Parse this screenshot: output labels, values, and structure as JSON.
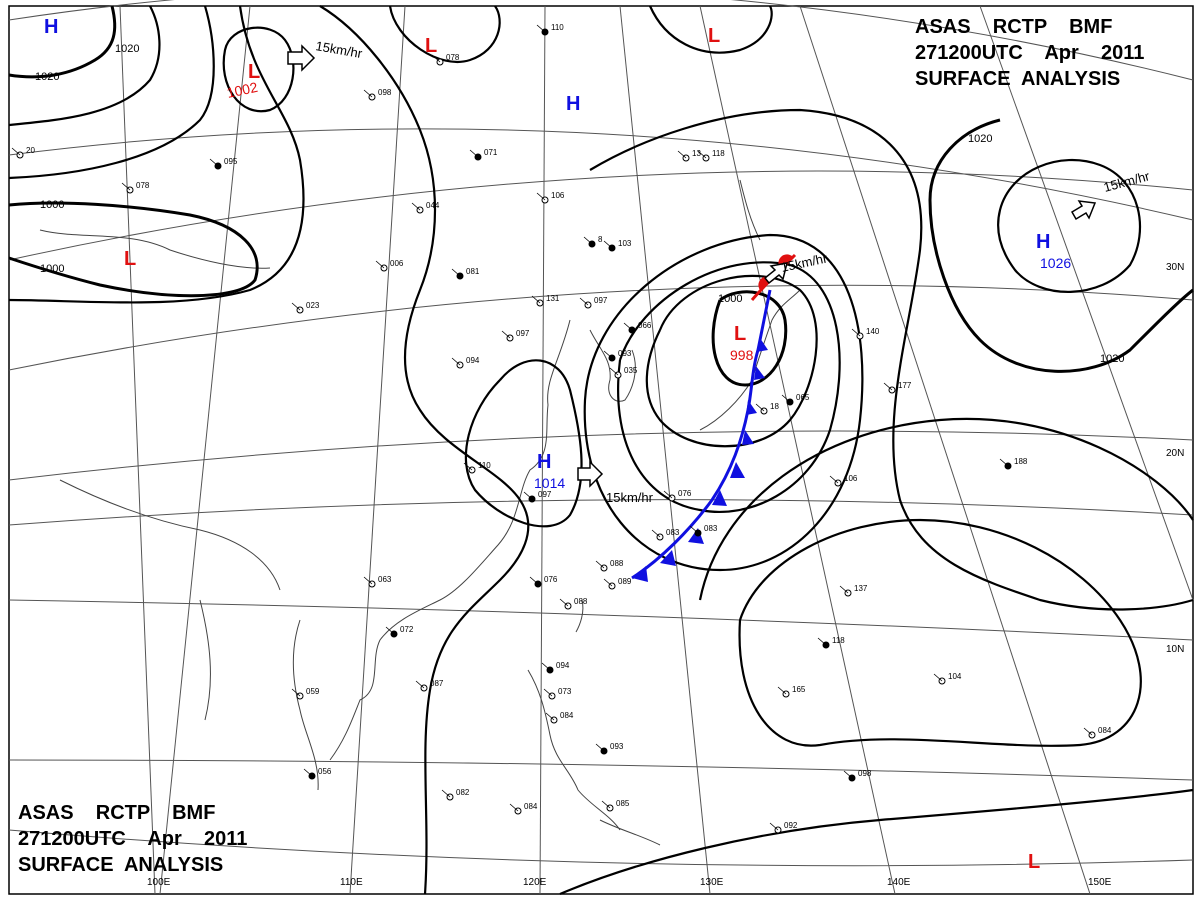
{
  "header": {
    "line1": "ASAS    RCTP    BMF",
    "line2": "271200UTC    Apr    2011",
    "line3": "SURFACE  ANALYSIS"
  },
  "colors": {
    "high": "#1010e0",
    "low": "#e01010",
    "isobar": "#000000",
    "grid": "#555555",
    "coast": "#444444"
  },
  "grid_labels": {
    "longitudes": [
      "100E",
      "110E",
      "120E",
      "130E",
      "140E",
      "150E"
    ],
    "latitudes": [
      "30N",
      "20N",
      "10N"
    ]
  },
  "isobar_labels": [
    "1020",
    "1020",
    "1000",
    "1000",
    "1020",
    "1020",
    "1000"
  ],
  "pressure_centers": [
    {
      "letter": "H",
      "kind": "high",
      "value": ""
    },
    {
      "letter": "L",
      "kind": "low",
      "value": "1002"
    },
    {
      "letter": "L",
      "kind": "low",
      "value": ""
    },
    {
      "letter": "L",
      "kind": "low",
      "value": ""
    },
    {
      "letter": "H",
      "kind": "high",
      "value": ""
    },
    {
      "letter": "L",
      "kind": "low",
      "value": ""
    },
    {
      "letter": "H",
      "kind": "high",
      "value": "1026"
    },
    {
      "letter": "L",
      "kind": "low",
      "value": "998"
    },
    {
      "letter": "H",
      "kind": "high",
      "value": "1014"
    },
    {
      "letter": "L",
      "kind": "low",
      "value": ""
    }
  ],
  "motion_labels": [
    "15km/hr",
    "15km/hr",
    "15km/hr",
    "15km/hr"
  ],
  "station_numbers": [
    "110",
    "078",
    "098",
    "071",
    "118",
    "106",
    "103",
    "097",
    "131",
    "095",
    "044",
    "006",
    "081",
    "023",
    "078",
    "093",
    "097",
    "094",
    "066",
    "035",
    "110",
    "097",
    "076",
    "083",
    "083",
    "088",
    "089",
    "076",
    "088",
    "063",
    "072",
    "087",
    "059",
    "056",
    "082",
    "084",
    "093",
    "085",
    "092",
    "094",
    "073",
    "084",
    "065",
    "140",
    "177",
    "188",
    "106",
    "137",
    "118",
    "104",
    "084",
    "098",
    "165",
    "13",
    "8",
    "20",
    "18"
  ]
}
